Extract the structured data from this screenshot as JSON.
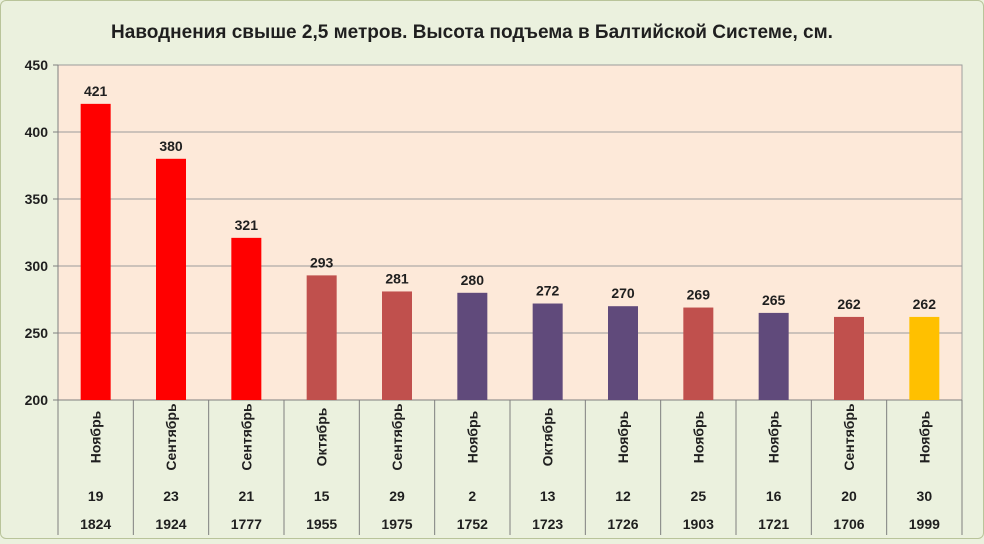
{
  "chart_data": {
    "type": "bar",
    "title": "Наводнения свыше 2,5 метров. Высота подъема в Балтийской Системе, см.",
    "ylim": [
      200,
      450
    ],
    "yticks": [
      200,
      250,
      300,
      350,
      400,
      450
    ],
    "grid": true,
    "bars": [
      {
        "value": 421,
        "month": "Ноябрь",
        "day": "19",
        "year": "1824",
        "color": "#ff0000"
      },
      {
        "value": 380,
        "month": "Сентябрь",
        "day": "23",
        "year": "1924",
        "color": "#ff0000"
      },
      {
        "value": 321,
        "month": "Сентябрь",
        "day": "21",
        "year": "1777",
        "color": "#ff0000"
      },
      {
        "value": 293,
        "month": "Октябрь",
        "day": "15",
        "year": "1955",
        "color": "#c0504d"
      },
      {
        "value": 281,
        "month": "Сентябрь",
        "day": "29",
        "year": "1975",
        "color": "#c0504d"
      },
      {
        "value": 280,
        "month": "Ноябрь",
        "day": "2",
        "year": "1752",
        "color": "#604a7b"
      },
      {
        "value": 272,
        "month": "Октябрь",
        "day": "13",
        "year": "1723",
        "color": "#604a7b"
      },
      {
        "value": 270,
        "month": "Ноябрь",
        "day": "12",
        "year": "1726",
        "color": "#604a7b"
      },
      {
        "value": 269,
        "month": "Ноябрь",
        "day": "25",
        "year": "1903",
        "color": "#c0504d"
      },
      {
        "value": 265,
        "month": "Ноябрь",
        "day": "16",
        "year": "1721",
        "color": "#604a7b"
      },
      {
        "value": 262,
        "month": "Сентябрь",
        "day": "20",
        "year": "1706",
        "color": "#c0504d"
      },
      {
        "value": 262,
        "month": "Ноябрь",
        "day": "30",
        "year": "1999",
        "color": "#ffc000"
      }
    ]
  },
  "colors": {
    "plot_background": "#fde9d9",
    "page_background": "#ebf1de"
  }
}
